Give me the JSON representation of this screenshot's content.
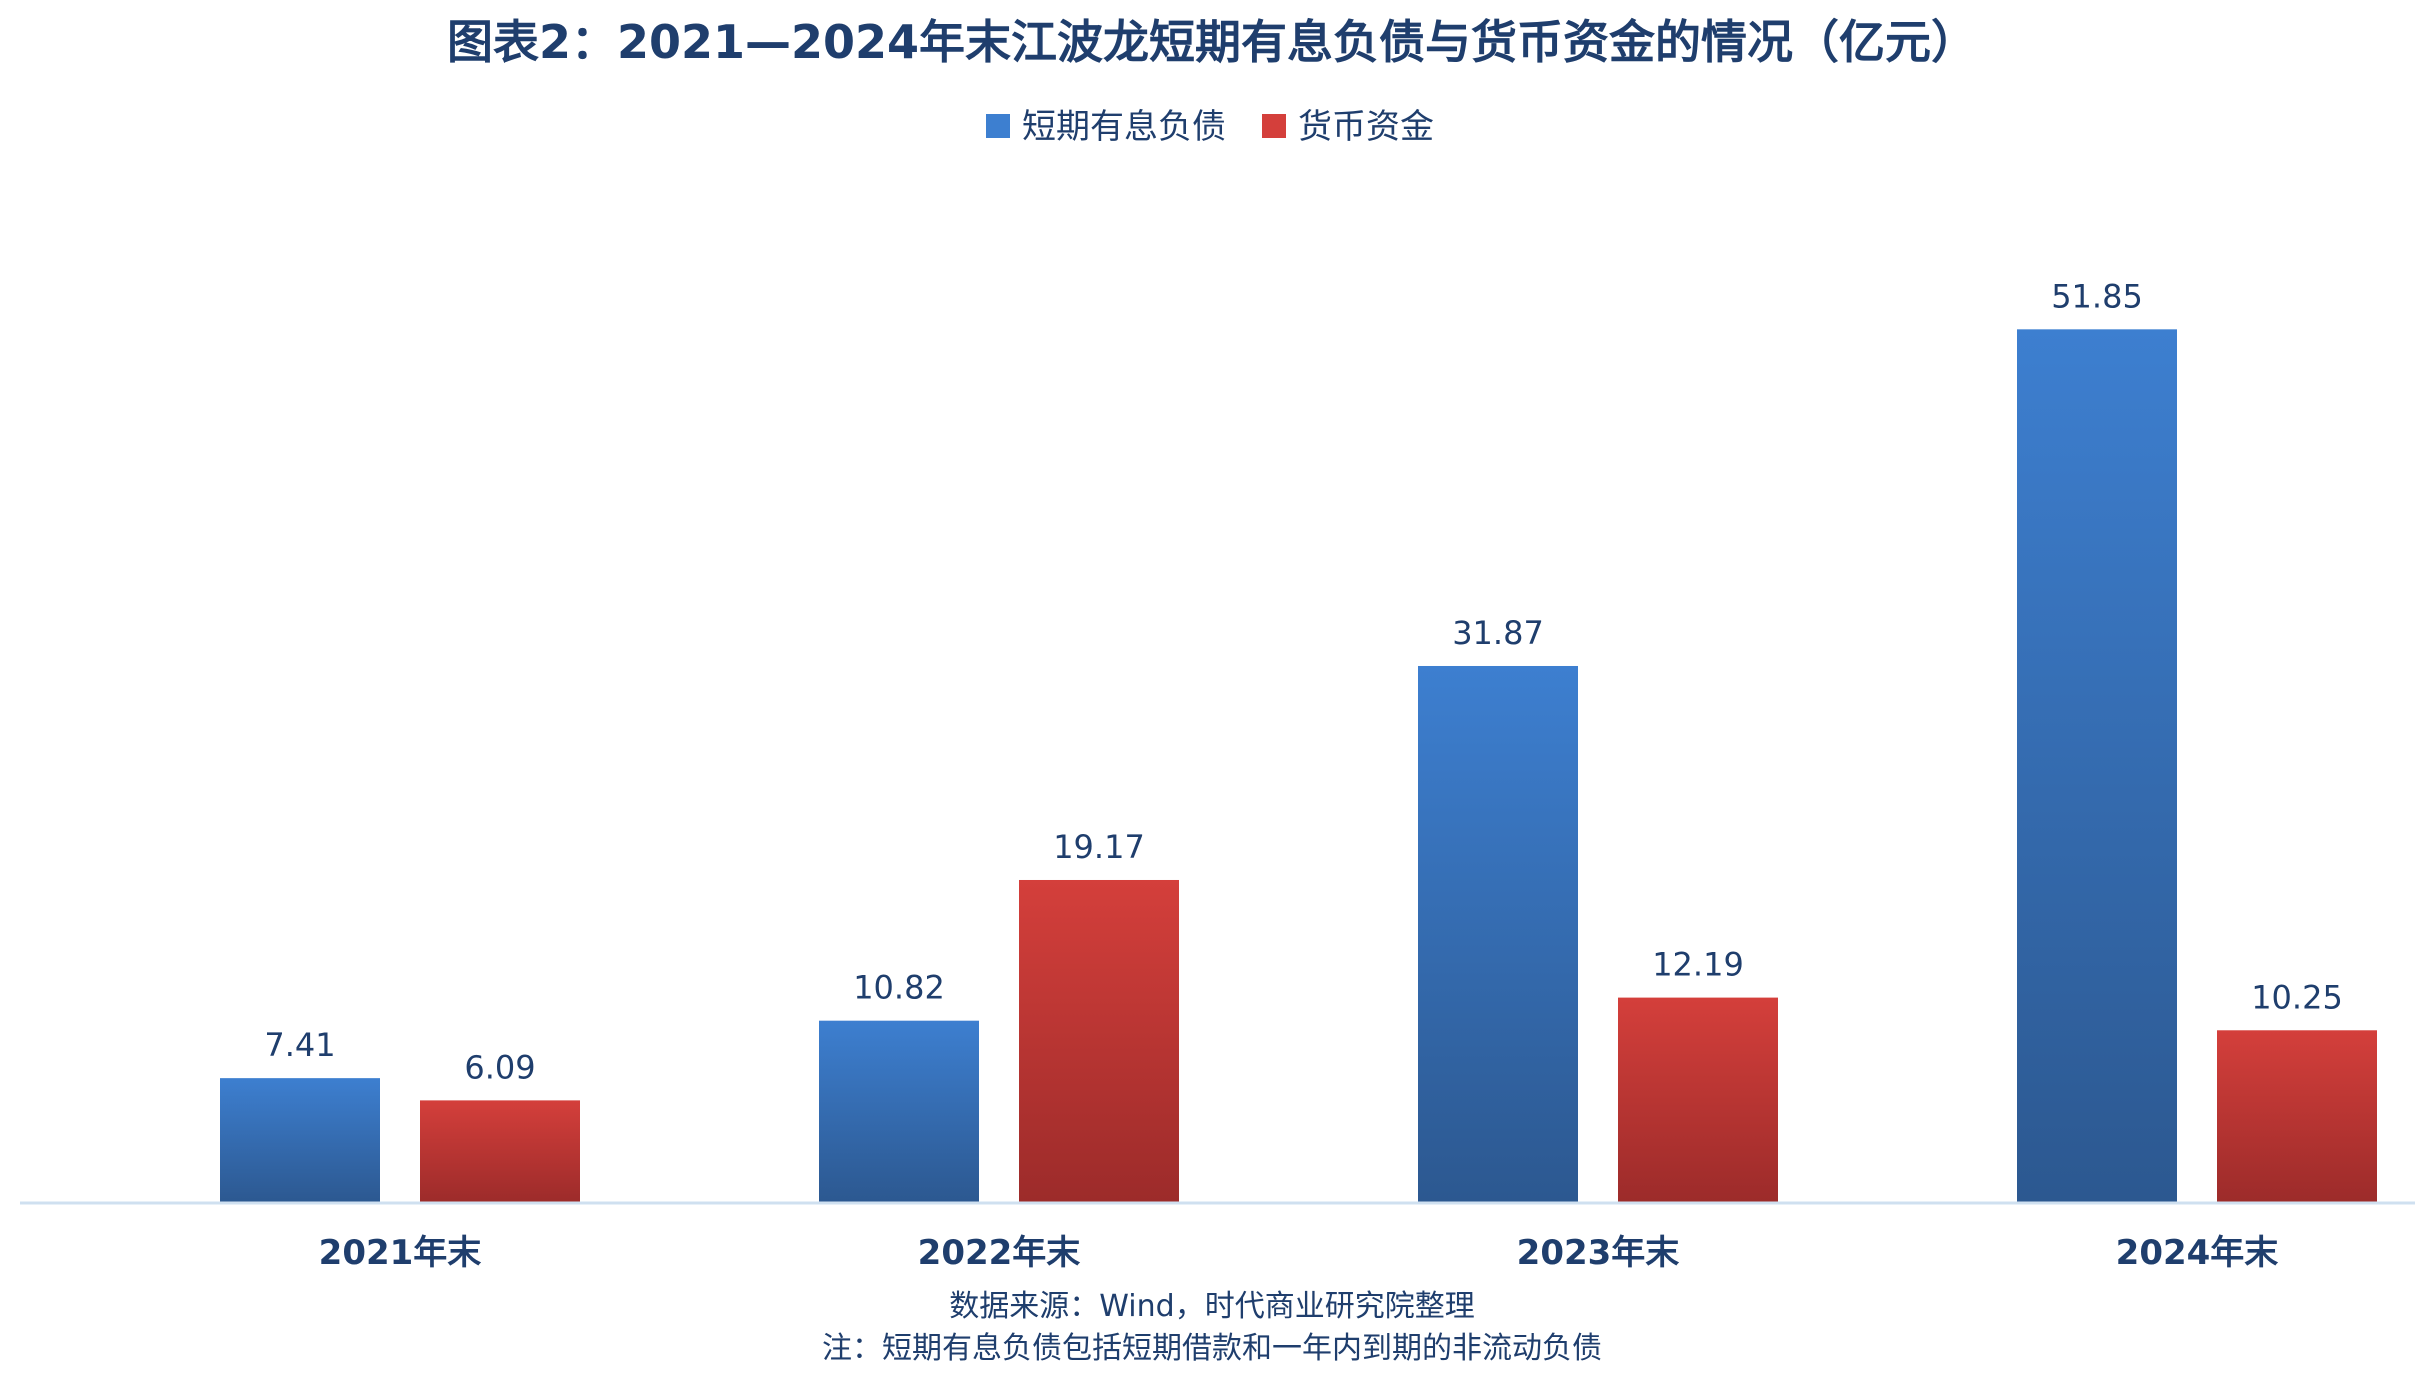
{
  "chart_data": {
    "type": "bar",
    "title": "图表2：2021—2024年末江波龙短期有息负债与货币资金的情况（亿元）",
    "categories": [
      "2021年末",
      "2022年末",
      "2023年末",
      "2024年末"
    ],
    "series": [
      {
        "name": "短期有息负债",
        "values": [
          7.41,
          10.82,
          31.87,
          51.85
        ],
        "labels": [
          "7.41",
          "10.82",
          "31.87",
          "51.85"
        ],
        "color_top": "#3d7fd0",
        "color_bottom": "#2c5890"
      },
      {
        "name": "货币资金",
        "values": [
          6.09,
          19.17,
          12.19,
          10.25
        ],
        "labels": [
          "6.09",
          "19.17",
          "12.19",
          "10.25"
        ],
        "color_top": "#d43f3b",
        "color_bottom": "#9c2b2a"
      }
    ],
    "xlabel": "",
    "ylabel": "",
    "ylim": [
      0,
      60
    ],
    "grid": false,
    "legend_position": "top-center",
    "axis_color": "#cfe0f0",
    "text_color": "#1f3e6d"
  },
  "footnotes": {
    "source": "数据来源：Wind，时代商业研究院整理",
    "note": "注：短期有息负债包括短期借款和一年内到期的非流动负债"
  }
}
